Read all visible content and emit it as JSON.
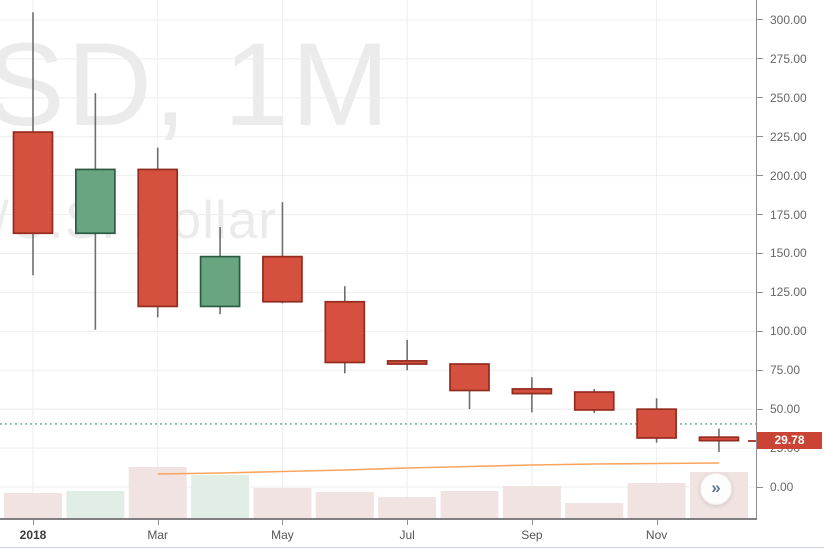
{
  "watermark": {
    "symbol": "SD, 1M",
    "description": "/U.S. Dollar"
  },
  "price_scale": {
    "tick_labels": [
      {
        "text": "300.00",
        "value": 300
      },
      {
        "text": "275.00",
        "value": 275
      },
      {
        "text": "250.00",
        "value": 250
      },
      {
        "text": "225.00",
        "value": 225
      },
      {
        "text": "200.00",
        "value": 200
      },
      {
        "text": "175.00",
        "value": 175
      },
      {
        "text": "150.00",
        "value": 150
      },
      {
        "text": "125.00",
        "value": 125
      },
      {
        "text": "100.00",
        "value": 100
      },
      {
        "text": "75.00",
        "value": 75
      },
      {
        "text": "50.00",
        "value": 50
      },
      {
        "text": "25.00",
        "value": 25
      },
      {
        "text": "0.00",
        "value": 0
      }
    ],
    "last_price_badge": {
      "text": "29.78",
      "value": 29.78,
      "bg": "#cb4335",
      "fg": "#ffffff"
    }
  },
  "time_scale": {
    "tick_labels": [
      {
        "text": "2018",
        "month_index": 0,
        "bold": true
      },
      {
        "text": "Mar",
        "month_index": 2,
        "bold": false
      },
      {
        "text": "May",
        "month_index": 4,
        "bold": false
      },
      {
        "text": "Jul",
        "month_index": 6,
        "bold": false
      },
      {
        "text": "Sep",
        "month_index": 8,
        "bold": false
      },
      {
        "text": "Nov",
        "month_index": 10,
        "bold": false
      }
    ]
  },
  "controls": {
    "scroll_to_recent_glyph": "»"
  },
  "chart_data": {
    "type": "candlestick",
    "interval": "1M",
    "title_watermark": "SD, 1M",
    "subtitle_watermark": "/U.S. Dollar",
    "x": [
      "Jan 2018",
      "Feb 2018",
      "Mar 2018",
      "Apr 2018",
      "May 2018",
      "Jun 2018",
      "Jul 2018",
      "Aug 2018",
      "Sep 2018",
      "Oct 2018",
      "Nov 2018",
      "Dec 2018"
    ],
    "ohlc_order": [
      "open",
      "high",
      "low",
      "close"
    ],
    "ohlc": [
      [
        228,
        305,
        136,
        163
      ],
      [
        163,
        253,
        101,
        204
      ],
      [
        204,
        218,
        109,
        116
      ],
      [
        116,
        167,
        111,
        148
      ],
      [
        148,
        183,
        118,
        119
      ],
      [
        119,
        129,
        73,
        80
      ],
      [
        81,
        94.5,
        75,
        79
      ],
      [
        79,
        79.5,
        50,
        62
      ],
      [
        63,
        70.5,
        48,
        60
      ],
      [
        61,
        63,
        47.5,
        49.5
      ],
      [
        50,
        57,
        28.5,
        31.5
      ],
      [
        32,
        37.5,
        22.5,
        29.78
      ]
    ],
    "volume_rel": [
      26,
      28,
      52,
      44,
      31,
      27,
      22,
      28,
      33,
      16,
      36,
      47
    ],
    "volume_ma_rel": {
      "start_month_index": 2,
      "values": [
        45,
        46,
        47.5,
        49,
        51,
        52.5,
        54,
        55,
        55.5,
        56
      ]
    },
    "dotted_price_line": 40.5,
    "last_price": 29.78,
    "ylim_labeled": [
      0,
      300
    ],
    "y_step": 25,
    "grid": true,
    "legend_position": "none",
    "colors": {
      "up_fill": "#6aa581",
      "up_border": "#2b5c41",
      "down_fill": "#d5503f",
      "down_border": "#932b1e",
      "wick": "#6e6e70",
      "volume_up": "#e1eee5",
      "volume_down": "#f0e3e1",
      "volume_ma": "#f9a55f",
      "dotted_line": "#63ab8c",
      "grid_line": "#eeeeee",
      "axis_text": "#676767",
      "badge_bg": "#cb4335"
    }
  }
}
